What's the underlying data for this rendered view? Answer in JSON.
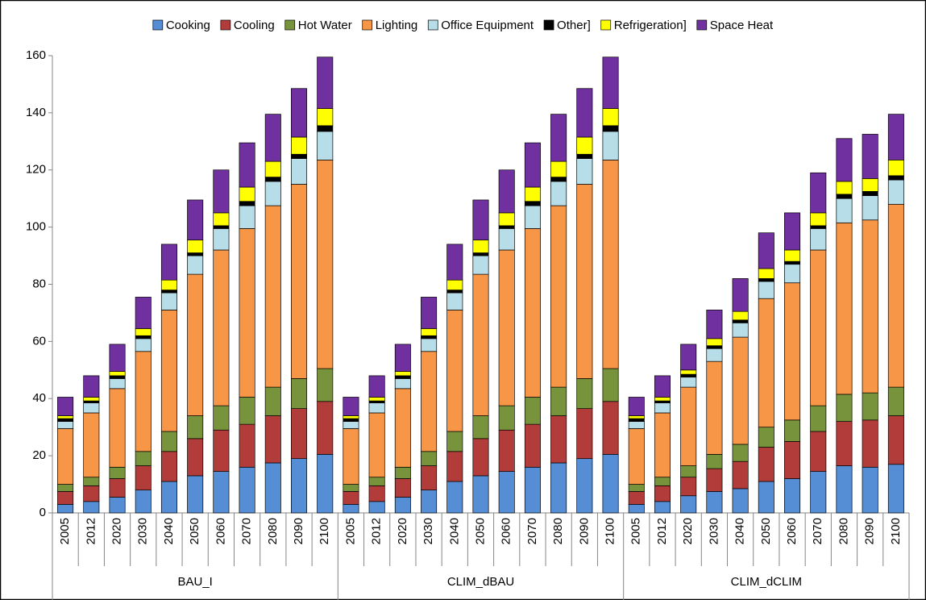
{
  "chart_data": {
    "type": "stacked_bar",
    "groups": [
      {
        "label": "BAU_I",
        "categories": [
          "2005",
          "2012",
          "2020",
          "2030",
          "2040",
          "2050",
          "2060",
          "2070",
          "2080",
          "2090",
          "2100"
        ]
      },
      {
        "label": "CLIM_dBAU",
        "categories": [
          "2005",
          "2012",
          "2020",
          "2030",
          "2040",
          "2050",
          "2060",
          "2070",
          "2080",
          "2090",
          "2100"
        ]
      },
      {
        "label": "CLIM_dCLIM",
        "categories": [
          "2005",
          "2012",
          "2020",
          "2030",
          "2040",
          "2050",
          "2060",
          "2070",
          "2080",
          "2090",
          "2100"
        ]
      }
    ],
    "series": [
      {
        "name": "Cooking",
        "color": "#558ed5",
        "values": [
          3,
          4,
          5.5,
          8,
          11,
          13,
          14.5,
          16,
          17.5,
          19,
          20.5,
          3,
          4,
          5.5,
          8,
          11,
          13,
          14.5,
          16,
          17.5,
          19,
          20.5,
          3,
          4,
          6,
          7.5,
          8.5,
          11,
          12,
          14.5,
          16.5,
          16,
          17
        ]
      },
      {
        "name": "Cooling",
        "color": "#b23c3a",
        "values": [
          4.5,
          5.5,
          6.5,
          8.5,
          10.5,
          13,
          14.5,
          15,
          16.5,
          17.5,
          18.5,
          4.5,
          5.5,
          6.5,
          8.5,
          10.5,
          13,
          14.5,
          15,
          16.5,
          17.5,
          18.5,
          4.5,
          5.5,
          6.5,
          8,
          9.5,
          12,
          13,
          14,
          15.5,
          16.5,
          17
        ]
      },
      {
        "name": "Hot Water",
        "color": "#77933c",
        "values": [
          2.5,
          3,
          4,
          5,
          7,
          8,
          8.5,
          9.5,
          10,
          10.5,
          11.5,
          2.5,
          3,
          4,
          5,
          7,
          8,
          8.5,
          9.5,
          10,
          10.5,
          11.5,
          2.5,
          3,
          4,
          5,
          6,
          7,
          7.5,
          9,
          9.5,
          9.5,
          10
        ]
      },
      {
        "name": "Lighting",
        "color": "#f79646",
        "values": [
          19.5,
          22.5,
          27.5,
          35,
          42.5,
          49.5,
          54.5,
          59,
          63.5,
          68,
          73,
          19.5,
          22.5,
          27.5,
          35,
          42.5,
          49.5,
          54.5,
          59,
          63.5,
          68,
          73,
          19.5,
          22.5,
          27.5,
          32.5,
          37.5,
          45,
          48,
          54.5,
          60,
          60.5,
          64
        ]
      },
      {
        "name": "Office Equipment",
        "color": "#b7dee8",
        "values": [
          2.5,
          3.5,
          3.5,
          4.5,
          6,
          6.5,
          7.5,
          8,
          8.5,
          9,
          10,
          2.5,
          3.5,
          3.5,
          4.5,
          6,
          6.5,
          7.5,
          8,
          8.5,
          9,
          10,
          2.5,
          3.5,
          3.5,
          4.5,
          5,
          6,
          6.5,
          7.5,
          8.5,
          8.5,
          8.5
        ]
      },
      {
        "name": "Other]",
        "color": "#000000",
        "values": [
          1,
          0.7,
          1,
          1,
          1,
          1,
          1,
          1.5,
          1.5,
          1.5,
          2,
          1,
          0.7,
          1,
          1,
          1,
          1,
          1,
          1.5,
          1.5,
          1.5,
          2,
          1,
          0.7,
          1,
          1,
          1,
          1,
          1,
          1,
          1.5,
          1.5,
          1.5
        ]
      },
      {
        "name": "Refrigeration]",
        "color": "#ffff00",
        "values": [
          1,
          1.3,
          1.5,
          2.5,
          3.5,
          4.5,
          4.5,
          5,
          5.5,
          6,
          6,
          1,
          1.3,
          1.5,
          2.5,
          3.5,
          4.5,
          4.5,
          5,
          5.5,
          6,
          6,
          1,
          1.3,
          1.5,
          2.5,
          3,
          3.5,
          4,
          4.5,
          4.5,
          4.5,
          5.5
        ]
      },
      {
        "name": "Space Heat",
        "color": "#7030a0",
        "values": [
          6.5,
          7.5,
          9.5,
          11,
          12.5,
          14,
          15,
          15.5,
          16.5,
          17,
          18,
          6.5,
          7.5,
          9.5,
          11,
          12.5,
          14,
          15,
          15.5,
          16.5,
          17,
          18,
          6.5,
          7.5,
          9,
          10,
          11.5,
          12.5,
          13,
          14,
          15,
          15.5,
          16
        ]
      }
    ],
    "ylim": [
      0,
      160
    ],
    "yticks": [
      0,
      20,
      40,
      60,
      80,
      100,
      120,
      140,
      160
    ],
    "grid": false,
    "legend": "top"
  }
}
